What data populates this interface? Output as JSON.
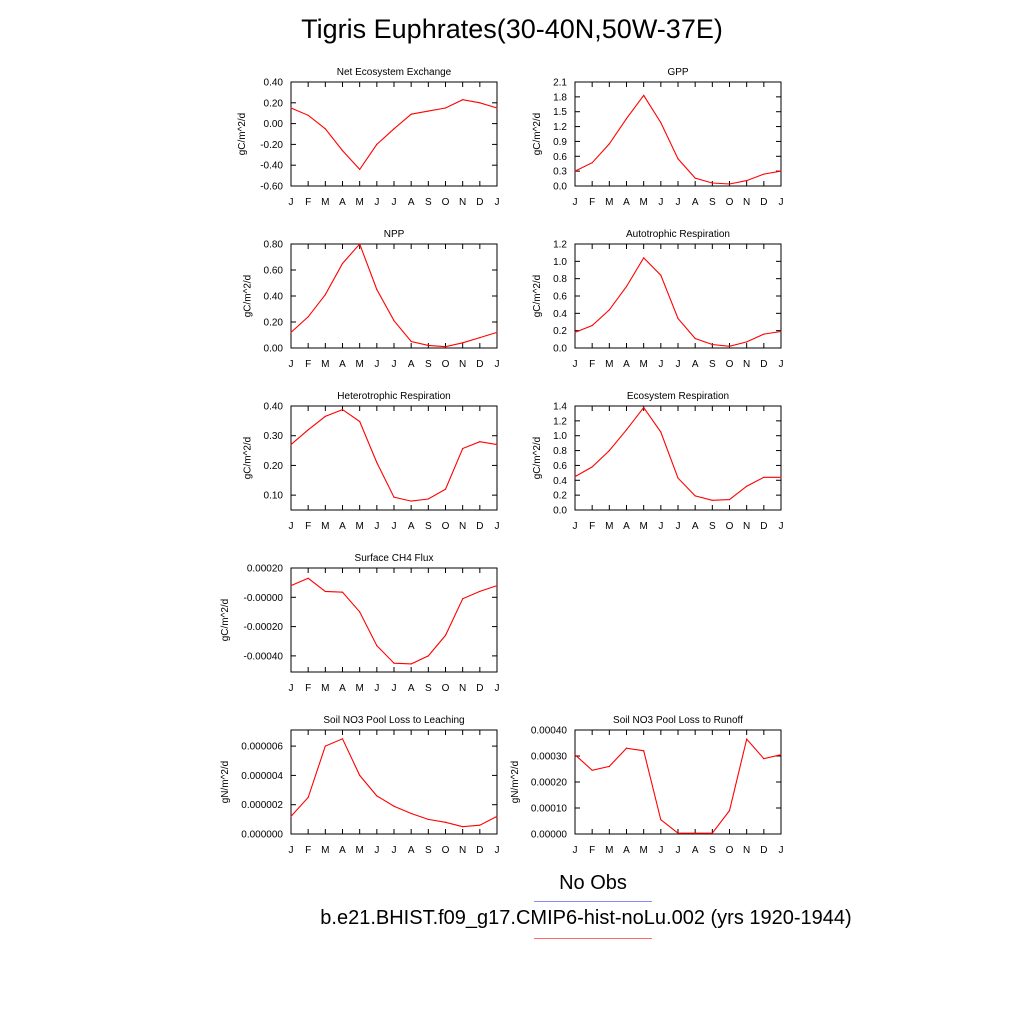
{
  "page": {
    "title": "Tigris Euphrates(30-40N,50W-37E)",
    "legend": [
      {
        "label": "No Obs",
        "color": "#8a8aff"
      },
      {
        "label": "b.e21.BHIST.f09_g17.CMIP6-hist-noLu.002 (yrs 1920-1944)",
        "color": "#ff6a6a"
      }
    ],
    "line_color": "#ff0000"
  },
  "chart_data": [
    {
      "type": "line",
      "title": "Net Ecosystem Exchange",
      "ylabel": "gC/m^2/d",
      "x": [
        "J",
        "F",
        "M",
        "A",
        "M",
        "J",
        "J",
        "A",
        "S",
        "O",
        "N",
        "D",
        "J"
      ],
      "ylim": [
        -0.6,
        0.4
      ],
      "yticks": [
        0.4,
        0.2,
        0.0,
        -0.2,
        -0.4,
        -0.6
      ],
      "yticklabels": [
        "0.40",
        "0.20",
        "0.00",
        "-0.20",
        "-0.40",
        "-0.60"
      ],
      "values": [
        0.15,
        0.08,
        -0.05,
        -0.26,
        -0.44,
        -0.2,
        -0.05,
        0.09,
        0.12,
        0.15,
        0.23,
        0.2,
        0.15
      ]
    },
    {
      "type": "line",
      "title": "GPP",
      "ylabel": "gC/m^2/d",
      "x": [
        "J",
        "F",
        "M",
        "A",
        "M",
        "J",
        "J",
        "A",
        "S",
        "O",
        "N",
        "D",
        "J"
      ],
      "ylim": [
        0.0,
        2.1
      ],
      "yticks": [
        2.1,
        1.8,
        1.5,
        1.2,
        0.9,
        0.6,
        0.3,
        0.0
      ],
      "yticklabels": [
        "2.1",
        "1.8",
        "1.5",
        "1.2",
        "0.9",
        "0.6",
        "0.3",
        "0.0"
      ],
      "values": [
        0.3,
        0.47,
        0.85,
        1.36,
        1.83,
        1.28,
        0.55,
        0.16,
        0.06,
        0.04,
        0.11,
        0.24,
        0.3
      ]
    },
    {
      "type": "line",
      "title": "NPP",
      "ylabel": "gC/m^2/d",
      "x": [
        "J",
        "F",
        "M",
        "A",
        "M",
        "J",
        "J",
        "A",
        "S",
        "O",
        "N",
        "D",
        "J"
      ],
      "ylim": [
        0.0,
        0.8
      ],
      "yticks": [
        0.8,
        0.6,
        0.4,
        0.2,
        0.0
      ],
      "yticklabels": [
        "0.80",
        "0.60",
        "0.40",
        "0.20",
        "0.00"
      ],
      "values": [
        0.12,
        0.24,
        0.41,
        0.65,
        0.8,
        0.45,
        0.21,
        0.05,
        0.02,
        0.01,
        0.04,
        0.08,
        0.12
      ]
    },
    {
      "type": "line",
      "title": "Autotrophic Respiration",
      "ylabel": "gC/m^2/d",
      "x": [
        "J",
        "F",
        "M",
        "A",
        "M",
        "J",
        "J",
        "A",
        "S",
        "O",
        "N",
        "D",
        "J"
      ],
      "ylim": [
        0.0,
        1.2
      ],
      "yticks": [
        1.2,
        1.0,
        0.8,
        0.6,
        0.4,
        0.2,
        0.0
      ],
      "yticklabels": [
        "1.2",
        "1.0",
        "0.8",
        "0.6",
        "0.4",
        "0.2",
        "0.0"
      ],
      "values": [
        0.18,
        0.26,
        0.44,
        0.71,
        1.04,
        0.84,
        0.34,
        0.11,
        0.04,
        0.02,
        0.07,
        0.16,
        0.19
      ]
    },
    {
      "type": "line",
      "title": "Heterotrophic Respiration",
      "ylabel": "gC/m^2/d",
      "x": [
        "J",
        "F",
        "M",
        "A",
        "M",
        "J",
        "J",
        "A",
        "S",
        "O",
        "N",
        "D",
        "J"
      ],
      "ylim": [
        0.05,
        0.4
      ],
      "yticks": [
        0.4,
        0.3,
        0.2,
        0.1
      ],
      "yticklabels": [
        "0.40",
        "0.30",
        "0.20",
        "0.10"
      ],
      "values": [
        0.27,
        0.32,
        0.365,
        0.388,
        0.348,
        0.21,
        0.093,
        0.08,
        0.087,
        0.12,
        0.257,
        0.28,
        0.27
      ]
    },
    {
      "type": "line",
      "title": "Ecosystem Respiration",
      "ylabel": "gC/m^2/d",
      "x": [
        "J",
        "F",
        "M",
        "A",
        "M",
        "J",
        "J",
        "A",
        "S",
        "O",
        "N",
        "D",
        "J"
      ],
      "ylim": [
        0.0,
        1.4
      ],
      "yticks": [
        1.4,
        1.2,
        1.0,
        0.8,
        0.6,
        0.4,
        0.2,
        0.0
      ],
      "yticklabels": [
        "1.4",
        "1.2",
        "1.0",
        "0.8",
        "0.6",
        "0.4",
        "0.2",
        "0.0"
      ],
      "values": [
        0.45,
        0.58,
        0.8,
        1.08,
        1.38,
        1.05,
        0.43,
        0.19,
        0.13,
        0.14,
        0.32,
        0.44,
        0.44
      ]
    },
    {
      "type": "line",
      "title": "Surface CH4 Flux",
      "ylabel": "gC/m^2/d",
      "x": [
        "J",
        "F",
        "M",
        "A",
        "M",
        "J",
        "J",
        "A",
        "S",
        "O",
        "N",
        "D",
        "J"
      ],
      "ylim": [
        -0.00051,
        0.0002
      ],
      "yticks": [
        0.0002,
        0.0,
        -0.0002,
        -0.0004
      ],
      "yticklabels": [
        "0.00020",
        "-0.00000",
        "-0.00020",
        "-0.00040"
      ],
      "values": [
        8e-05,
        0.00013,
        4e-05,
        3.5e-05,
        -0.0001,
        -0.00033,
        -0.00045,
        -0.000455,
        -0.0004,
        -0.00026,
        -1e-05,
        4e-05,
        8e-05
      ]
    },
    {
      "type": "line",
      "title": "Soil NO3 Pool Loss to Leaching",
      "ylabel": "gN/m^2/d",
      "x": [
        "J",
        "F",
        "M",
        "A",
        "M",
        "J",
        "J",
        "A",
        "S",
        "O",
        "N",
        "D",
        "J"
      ],
      "ylim": [
        0.0,
        7.1e-06
      ],
      "yticks": [
        6e-06,
        4e-06,
        2e-06,
        0.0
      ],
      "yticklabels": [
        "0.000006",
        "0.000004",
        "0.000002",
        "0.000000"
      ],
      "values": [
        1.2e-06,
        2.5e-06,
        6e-06,
        6.5e-06,
        4e-06,
        2.6e-06,
        1.9e-06,
        1.4e-06,
        1e-06,
        8e-07,
        5e-07,
        6e-07,
        1.2e-06
      ]
    },
    {
      "type": "line",
      "title": "Soil NO3 Pool Loss to Runoff",
      "ylabel": "gN/m^2/d",
      "x": [
        "J",
        "F",
        "M",
        "A",
        "M",
        "J",
        "J",
        "A",
        "S",
        "O",
        "N",
        "D",
        "J"
      ],
      "ylim": [
        0.0,
        0.0004
      ],
      "yticks": [
        0.0004,
        0.0003,
        0.0002,
        0.0001,
        0.0
      ],
      "yticklabels": [
        "0.00040",
        "0.00030",
        "0.00020",
        "0.00010",
        "0.00000"
      ],
      "values": [
        0.000305,
        0.000245,
        0.00026,
        0.00033,
        0.00032,
        5.5e-05,
        3e-06,
        3e-06,
        3e-06,
        9e-05,
        0.000365,
        0.00029,
        0.000305
      ]
    }
  ]
}
